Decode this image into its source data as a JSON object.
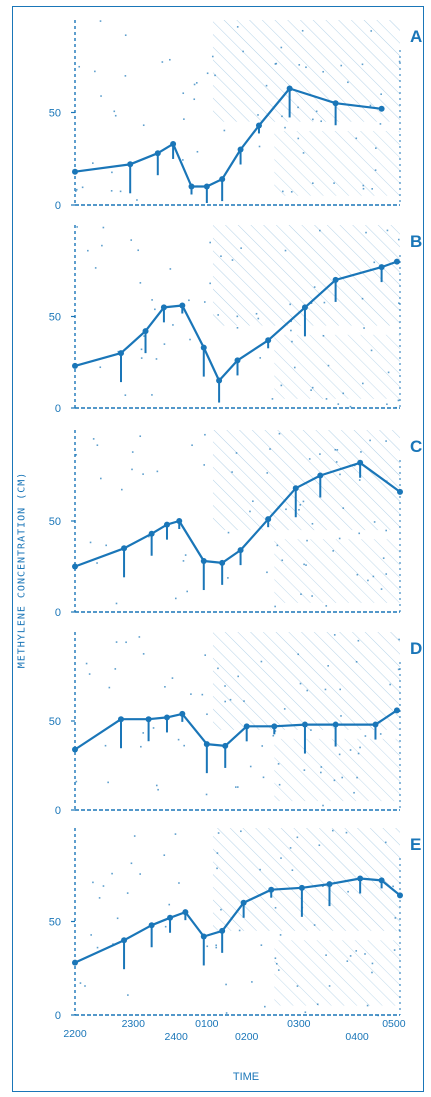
{
  "ylabel": "METHYLENE CONCENTRATION (CM)",
  "xlabel": "TIME",
  "colors": {
    "ink": "#1a76b8",
    "background": "#ffffff"
  },
  "chart_data": [
    {
      "type": "line",
      "panel": "A",
      "x_ticks": [
        "2200",
        "2300",
        "2400",
        "0100",
        "0200",
        "0300",
        "0400",
        "0500"
      ],
      "y_ticks": [
        "0",
        "50"
      ],
      "ylim": [
        0,
        100
      ],
      "series": [
        {
          "points": [
            [
              0,
              18
            ],
            [
              1.8,
              22
            ],
            [
              2.7,
              28
            ],
            [
              3.2,
              33
            ],
            [
              3.8,
              10
            ],
            [
              4.3,
              10
            ],
            [
              4.8,
              14
            ],
            [
              5.4,
              30
            ],
            [
              6.0,
              43
            ],
            [
              7.0,
              63
            ],
            [
              8.5,
              55
            ],
            [
              10.0,
              52
            ]
          ]
        }
      ]
    },
    {
      "type": "line",
      "panel": "B",
      "x_ticks": [
        "2200",
        "2300",
        "2400",
        "0100",
        "0200",
        "0300",
        "0400",
        "0500"
      ],
      "y_ticks": [
        "0",
        "50"
      ],
      "ylim": [
        0,
        100
      ],
      "series": [
        {
          "points": [
            [
              0,
              23
            ],
            [
              1.5,
              30
            ],
            [
              2.3,
              42
            ],
            [
              2.9,
              55
            ],
            [
              3.5,
              56
            ],
            [
              4.2,
              33
            ],
            [
              4.7,
              15
            ],
            [
              5.3,
              26
            ],
            [
              6.3,
              37
            ],
            [
              7.5,
              55
            ],
            [
              8.5,
              70
            ],
            [
              10.0,
              77
            ],
            [
              10.5,
              80
            ]
          ]
        }
      ]
    },
    {
      "type": "line",
      "panel": "C",
      "x_ticks": [
        "2200",
        "2300",
        "2400",
        "0100",
        "0200",
        "0300",
        "0400",
        "0500"
      ],
      "y_ticks": [
        "0",
        "50"
      ],
      "ylim": [
        0,
        100
      ],
      "series": [
        {
          "points": [
            [
              0,
              25
            ],
            [
              1.6,
              35
            ],
            [
              2.5,
              43
            ],
            [
              3.0,
              48
            ],
            [
              3.4,
              50
            ],
            [
              4.2,
              28
            ],
            [
              4.8,
              27
            ],
            [
              5.4,
              34
            ],
            [
              6.3,
              51
            ],
            [
              7.2,
              68
            ],
            [
              8.0,
              75
            ],
            [
              9.3,
              82
            ],
            [
              10.6,
              66
            ]
          ]
        }
      ]
    },
    {
      "type": "line",
      "panel": "D",
      "x_ticks": [
        "2200",
        "2300",
        "2400",
        "0100",
        "0200",
        "0300",
        "0400",
        "0500"
      ],
      "y_ticks": [
        "0",
        "50"
      ],
      "ylim": [
        0,
        100
      ],
      "series": [
        {
          "points": [
            [
              0,
              34
            ],
            [
              1.5,
              51
            ],
            [
              2.4,
              51
            ],
            [
              3.0,
              52
            ],
            [
              3.5,
              54
            ],
            [
              4.3,
              37
            ],
            [
              4.9,
              36
            ],
            [
              5.6,
              47
            ],
            [
              6.5,
              47
            ],
            [
              7.5,
              48
            ],
            [
              8.5,
              48
            ],
            [
              9.8,
              48
            ],
            [
              10.5,
              56
            ]
          ]
        }
      ]
    },
    {
      "type": "line",
      "panel": "E",
      "x_ticks": [
        "2200",
        "2300",
        "2400",
        "0100",
        "0200",
        "0300",
        "0400",
        "0500"
      ],
      "y_ticks": [
        "0",
        "50"
      ],
      "ylim": [
        0,
        100
      ],
      "series": [
        {
          "points": [
            [
              0,
              28
            ],
            [
              1.6,
              40
            ],
            [
              2.5,
              48
            ],
            [
              3.1,
              52
            ],
            [
              3.6,
              55
            ],
            [
              4.2,
              42
            ],
            [
              4.8,
              45
            ],
            [
              5.5,
              60
            ],
            [
              6.4,
              67
            ],
            [
              7.4,
              68
            ],
            [
              8.3,
              70
            ],
            [
              9.3,
              73
            ],
            [
              10.0,
              72
            ],
            [
              10.6,
              64
            ]
          ]
        }
      ]
    }
  ]
}
